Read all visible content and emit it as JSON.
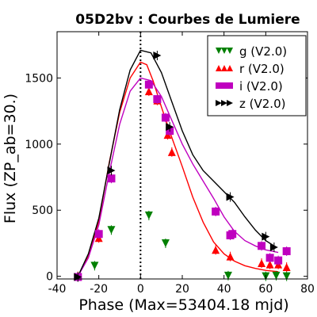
{
  "chart_data": {
    "type": "scatter",
    "title": "05D2bv : Courbes de Lumiere",
    "xlabel": "Phase (Max=53404.18 mjd)",
    "ylabel": "Flux (ZP_ab=30.)",
    "xlim": [
      -40,
      80
    ],
    "ylim": [
      -20,
      1850
    ],
    "xticks": [
      "-40",
      "-20",
      "0",
      "20",
      "40",
      "60",
      "80"
    ],
    "yticks": [
      "0",
      "500",
      "1000",
      "1500"
    ],
    "max_phase_line": 0,
    "legend_position": "top-right",
    "series": [
      {
        "name": "g (V2.0)",
        "color": "#008000",
        "marker": "triangle-down",
        "points": [
          [
            -30,
            -5
          ],
          [
            -22,
            80
          ],
          [
            -14,
            350
          ],
          [
            4,
            460
          ],
          [
            12,
            250
          ],
          [
            42,
            5
          ],
          [
            60,
            0
          ],
          [
            65,
            5
          ],
          [
            70,
            0
          ]
        ]
      },
      {
        "name": "r (V2.0)",
        "color": "#ff0000",
        "marker": "triangle-up",
        "points": [
          [
            -30,
            0
          ],
          [
            -20,
            290
          ],
          [
            -14,
            750
          ],
          [
            4,
            1400
          ],
          [
            8,
            1330
          ],
          [
            13,
            1070
          ],
          [
            15,
            940
          ],
          [
            36,
            200
          ],
          [
            43,
            150
          ],
          [
            58,
            100
          ],
          [
            62,
            90
          ],
          [
            66,
            90
          ],
          [
            70,
            70
          ]
        ],
        "curve": [
          [
            -30,
            0
          ],
          [
            -25,
            150
          ],
          [
            -20,
            420
          ],
          [
            -15,
            860
          ],
          [
            -10,
            1240
          ],
          [
            -5,
            1500
          ],
          [
            0,
            1620
          ],
          [
            3,
            1600
          ],
          [
            6,
            1480
          ],
          [
            10,
            1280
          ],
          [
            15,
            1050
          ],
          [
            20,
            830
          ],
          [
            25,
            600
          ],
          [
            30,
            410
          ],
          [
            35,
            260
          ],
          [
            40,
            170
          ],
          [
            45,
            115
          ],
          [
            50,
            80
          ],
          [
            55,
            60
          ],
          [
            60,
            45
          ],
          [
            66,
            35
          ]
        ]
      },
      {
        "name": "i (V2.0)",
        "color": "#bf00bf",
        "marker": "square",
        "points": [
          [
            -30,
            -5
          ],
          [
            -20,
            320
          ],
          [
            -14,
            740
          ],
          [
            4,
            1450
          ],
          [
            8,
            1340
          ],
          [
            12,
            1200
          ],
          [
            14,
            1100
          ],
          [
            36,
            490
          ],
          [
            43,
            310
          ],
          [
            44,
            320
          ],
          [
            58,
            230
          ],
          [
            62,
            140
          ],
          [
            66,
            120
          ],
          [
            70,
            190
          ]
        ],
        "curve": [
          [
            -30,
            0
          ],
          [
            -25,
            140
          ],
          [
            -20,
            390
          ],
          [
            -15,
            780
          ],
          [
            -10,
            1150
          ],
          [
            -5,
            1400
          ],
          [
            0,
            1500
          ],
          [
            5,
            1480
          ],
          [
            10,
            1360
          ],
          [
            15,
            1180
          ],
          [
            20,
            1000
          ],
          [
            25,
            850
          ],
          [
            30,
            720
          ],
          [
            35,
            590
          ],
          [
            40,
            450
          ],
          [
            45,
            340
          ],
          [
            50,
            270
          ],
          [
            55,
            230
          ],
          [
            60,
            200
          ],
          [
            66,
            180
          ]
        ]
      },
      {
        "name": "z (V2.0)",
        "color": "#000000",
        "marker": "triangle-right",
        "points": [
          [
            -30,
            -5
          ],
          [
            -14,
            800
          ],
          [
            8,
            1670
          ],
          [
            14,
            1130
          ],
          [
            43,
            600
          ],
          [
            60,
            300
          ],
          [
            64,
            220
          ]
        ],
        "curve": [
          [
            -30,
            0
          ],
          [
            -25,
            170
          ],
          [
            -20,
            440
          ],
          [
            -15,
            850
          ],
          [
            -10,
            1260
          ],
          [
            -5,
            1560
          ],
          [
            0,
            1710
          ],
          [
            5,
            1690
          ],
          [
            10,
            1540
          ],
          [
            15,
            1320
          ],
          [
            20,
            1100
          ],
          [
            25,
            920
          ],
          [
            30,
            800
          ],
          [
            35,
            720
          ],
          [
            40,
            640
          ],
          [
            45,
            560
          ],
          [
            50,
            450
          ],
          [
            55,
            350
          ],
          [
            60,
            270
          ],
          [
            65,
            220
          ]
        ]
      }
    ]
  }
}
